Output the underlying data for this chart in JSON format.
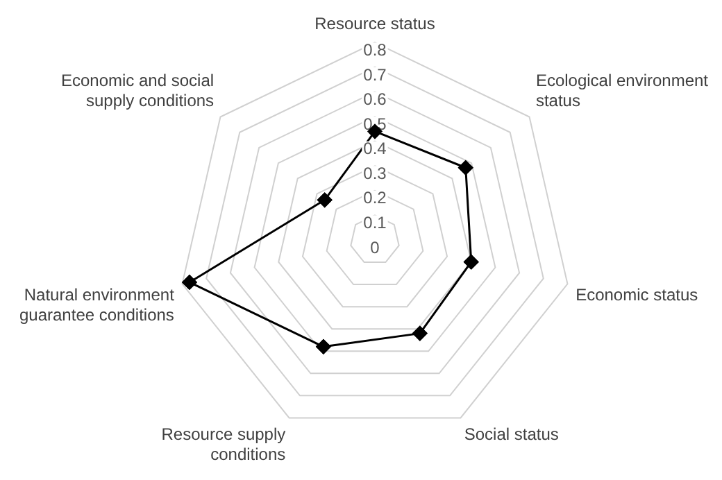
{
  "chart_data": {
    "type": "radar",
    "categories": [
      "Resource status",
      "Ecological environment status",
      "Economic status",
      "Social status",
      "Resource supply conditions",
      "Natural environment guarantee conditions",
      "Economic and social supply conditions"
    ],
    "series": [
      {
        "color": "#000000",
        "values": [
          0.44,
          0.47,
          0.4,
          0.42,
          0.48,
          0.77,
          0.26
        ]
      }
    ],
    "ylim": [
      0,
      0.8
    ],
    "yticks": [
      0,
      0.1,
      0.2,
      0.3,
      0.4,
      0.5,
      0.6,
      0.7,
      0.8
    ],
    "grid": true,
    "legend": false,
    "marker": "diamond",
    "line_style": "solid"
  }
}
